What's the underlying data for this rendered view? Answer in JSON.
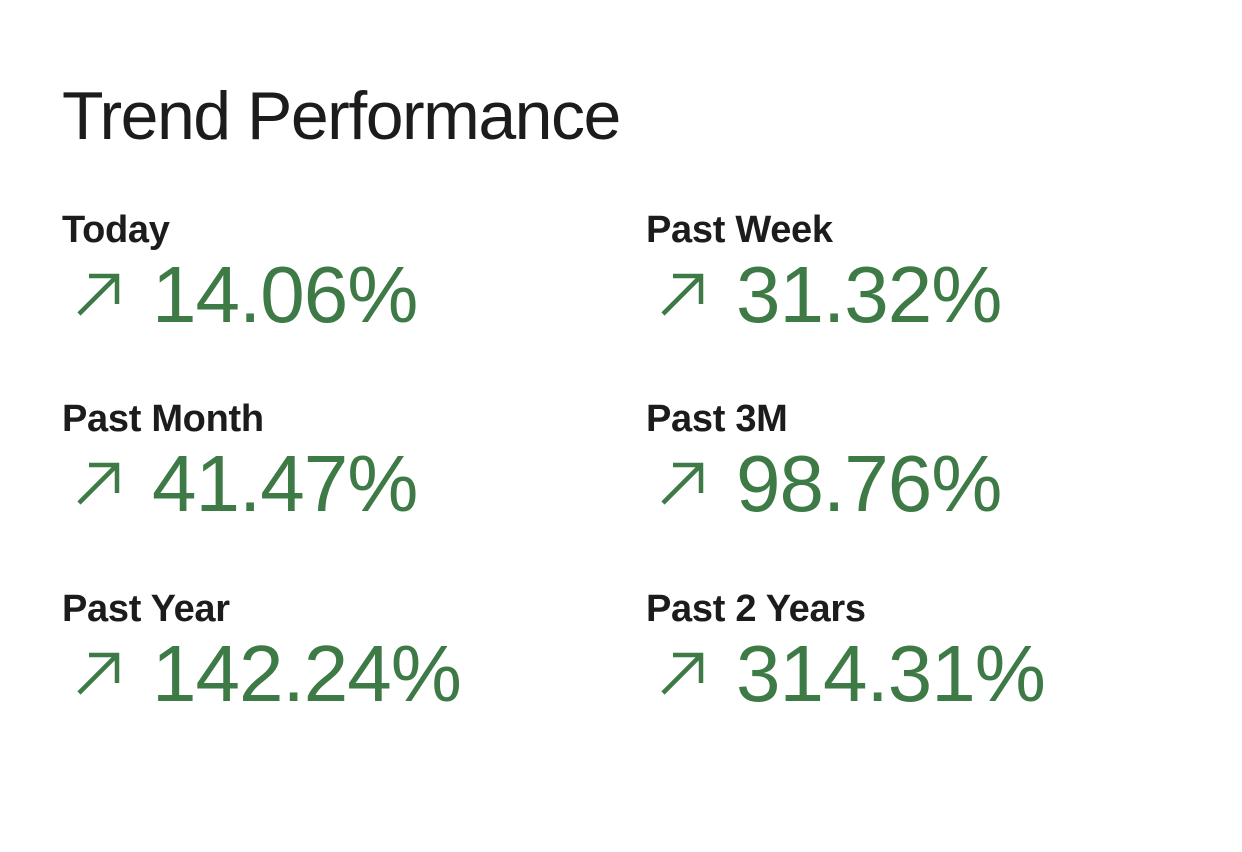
{
  "trend_performance": {
    "title": "Trend Performance",
    "metrics": [
      {
        "label": "Today",
        "value": "14.06%",
        "direction": "up",
        "icon": "arrow-up-right-icon"
      },
      {
        "label": "Past Week",
        "value": "31.32%",
        "direction": "up",
        "icon": "arrow-up-right-icon"
      },
      {
        "label": "Past Month",
        "value": "41.47%",
        "direction": "up",
        "icon": "arrow-up-right-icon"
      },
      {
        "label": "Past 3M",
        "value": "98.76%",
        "direction": "up",
        "icon": "arrow-up-right-icon"
      },
      {
        "label": "Past Year",
        "value": "142.24%",
        "direction": "up",
        "icon": "arrow-up-right-icon"
      },
      {
        "label": "Past 2 Years",
        "value": "314.31%",
        "direction": "up",
        "icon": "arrow-up-right-icon"
      }
    ]
  },
  "colors": {
    "positive": "#3d7a46",
    "text": "#1c1c1c",
    "background": "#ffffff"
  }
}
